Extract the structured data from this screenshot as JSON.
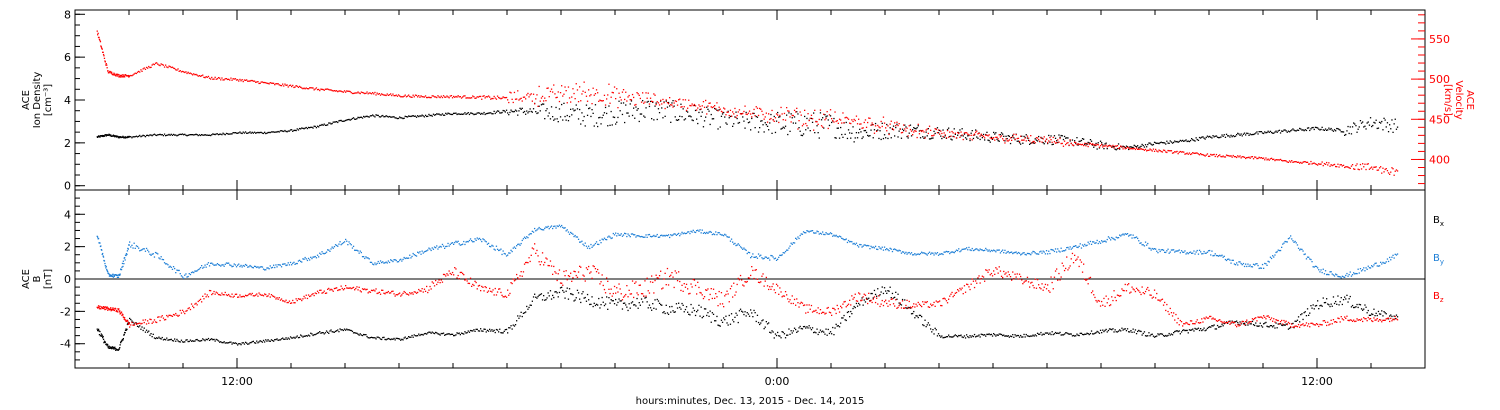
{
  "chart_data": [
    {
      "type": "scatter",
      "panel": "top",
      "ylabel": "ACE\nIon Density\n[cm⁻³]",
      "y2label": "ACE\nVelocity\n[km/s]",
      "ylim": [
        -0.2,
        8.2
      ],
      "y2lim": [
        362,
        586
      ],
      "yticks": [
        0,
        2,
        4,
        6,
        8
      ],
      "y2ticks": [
        400,
        450,
        500,
        550
      ],
      "colors": {
        "density": "#000000",
        "velocity": "#ff0000"
      },
      "series": [
        {
          "axis": "left",
          "color": "#000000",
          "x": [
            -5.2,
            -4.8,
            -4.4,
            -4.0,
            -3.0,
            -2.0,
            -1.0,
            0.0,
            1.0,
            2.0,
            3.0,
            4.0,
            5.0,
            6.0,
            7.0,
            8.0,
            9.0,
            10.0,
            11.0,
            12.0,
            13.0,
            14.0,
            15.0,
            16.0,
            17.0,
            18.0,
            19.0,
            20.0,
            21.0,
            22.0,
            23.0,
            24.0,
            25.0,
            26.0,
            27.0,
            28.0,
            29.0,
            30.0,
            31.0,
            32.0,
            33.0,
            34.0,
            35.0,
            36.0,
            37.0,
            38.0,
            39.0,
            40.0,
            41.0,
            42.0,
            43.0
          ],
          "y": [
            2.3,
            2.4,
            2.3,
            2.3,
            2.4,
            2.4,
            2.4,
            2.5,
            2.5,
            2.6,
            2.8,
            3.1,
            3.3,
            3.2,
            3.3,
            3.4,
            3.4,
            3.5,
            3.5,
            3.4,
            3.3,
            3.4,
            3.6,
            3.5,
            3.3,
            3.1,
            3.0,
            2.9,
            2.9,
            2.8,
            2.5,
            2.6,
            2.6,
            2.5,
            2.4,
            2.3,
            2.2,
            2.2,
            2.1,
            1.9,
            1.8,
            2.0,
            2.1,
            2.3,
            2.4,
            2.5,
            2.6,
            2.7,
            2.6,
            3.0,
            2.8
          ],
          "spread": [
            0.08,
            0.08,
            0.08,
            0.08,
            0.08,
            0.08,
            0.08,
            0.08,
            0.08,
            0.08,
            0.1,
            0.1,
            0.1,
            0.1,
            0.1,
            0.1,
            0.1,
            0.15,
            0.6,
            1.0,
            1.1,
            1.1,
            1.2,
            1.1,
            1.0,
            0.9,
            0.9,
            1.1,
            1.4,
            1.1,
            0.9,
            0.8,
            0.7,
            0.6,
            0.6,
            0.5,
            0.5,
            0.5,
            0.45,
            0.4,
            0.2,
            0.15,
            0.15,
            0.15,
            0.15,
            0.15,
            0.15,
            0.15,
            0.15,
            0.9,
            0.4
          ]
        },
        {
          "axis": "right",
          "color": "#ff0000",
          "x": [
            -5.2,
            -4.8,
            -4.4,
            -4.0,
            -3.0,
            -2.0,
            -1.0,
            0.0,
            1.0,
            2.0,
            3.0,
            4.0,
            5.0,
            6.0,
            7.0,
            8.0,
            9.0,
            10.0,
            11.0,
            12.0,
            13.0,
            14.0,
            15.0,
            16.0,
            17.0,
            18.0,
            19.0,
            20.0,
            21.0,
            22.0,
            23.0,
            24.0,
            25.0,
            26.0,
            27.0,
            28.0,
            29.0,
            30.0,
            31.0,
            32.0,
            33.0,
            34.0,
            35.0,
            36.0,
            37.0,
            38.0,
            39.0,
            40.0,
            41.0,
            42.0,
            43.0
          ],
          "y": [
            560,
            510,
            505,
            505,
            520,
            510,
            502,
            500,
            496,
            492,
            488,
            485,
            483,
            480,
            479,
            479,
            478,
            477,
            480,
            482,
            484,
            478,
            476,
            472,
            468,
            463,
            458,
            455,
            452,
            450,
            448,
            442,
            436,
            433,
            430,
            428,
            426,
            424,
            420,
            418,
            415,
            412,
            409,
            406,
            404,
            402,
            398,
            396,
            393,
            390,
            386
          ],
          "spread": [
            6,
            3,
            3,
            3,
            3,
            3,
            3,
            3,
            3,
            3,
            3,
            3,
            3,
            3,
            3,
            3,
            3,
            6,
            12,
            18,
            18,
            16,
            12,
            10,
            10,
            10,
            10,
            14,
            16,
            14,
            12,
            12,
            10,
            9,
            9,
            8,
            7,
            6,
            5,
            4,
            3,
            3,
            3,
            3,
            3,
            3,
            3,
            4,
            5,
            8,
            8
          ]
        }
      ]
    },
    {
      "type": "scatter",
      "panel": "bottom",
      "xlabel": "hours:minutes, Dec. 13, 2015 - Dec. 14, 2015",
      "ylabel": "ACE\nB\n[nT]",
      "ylim": [
        -5.5,
        5.5
      ],
      "yticks": [
        -4,
        -2,
        0,
        2,
        4
      ],
      "xlim": [
        -6.0,
        44.0
      ],
      "xticks_hours": [
        0,
        20,
        40
      ],
      "xtick_labels": [
        "12:00",
        "0:00",
        "12:00"
      ],
      "legend": [
        {
          "main": "B",
          "sub": "x",
          "color": "#000000"
        },
        {
          "main": "B",
          "sub": "y",
          "color": "#1e7fd6"
        },
        {
          "main": "B",
          "sub": "z",
          "color": "#ff0000"
        }
      ],
      "series": [
        {
          "name": "Bx",
          "color": "#000000",
          "x": [
            -5.2,
            -4.8,
            -4.4,
            -4.0,
            -3.0,
            -2.0,
            -1.0,
            0.0,
            1.0,
            2.0,
            3.0,
            4.0,
            5.0,
            6.0,
            7.0,
            8.0,
            9.0,
            10.0,
            11.0,
            12.0,
            13.0,
            14.0,
            15.0,
            16.0,
            17.0,
            18.0,
            19.0,
            20.0,
            21.0,
            22.0,
            23.0,
            24.0,
            25.0,
            26.0,
            27.0,
            28.0,
            29.0,
            30.0,
            31.0,
            32.0,
            33.0,
            34.0,
            35.0,
            36.0,
            37.0,
            38.0,
            39.0,
            40.0,
            41.0,
            42.0,
            43.0
          ],
          "y": [
            -3.0,
            -4.2,
            -4.3,
            -2.5,
            -3.6,
            -3.8,
            -3.7,
            -4.0,
            -3.8,
            -3.6,
            -3.3,
            -3.1,
            -3.6,
            -3.7,
            -3.3,
            -3.4,
            -3.1,
            -3.2,
            -1.2,
            -0.8,
            -1.2,
            -1.6,
            -1.4,
            -1.8,
            -1.9,
            -2.6,
            -2.0,
            -3.5,
            -3.0,
            -3.3,
            -1.5,
            -0.5,
            -2.0,
            -3.5,
            -3.5,
            -3.4,
            -3.5,
            -3.3,
            -3.4,
            -3.2,
            -3.1,
            -3.5,
            -3.2,
            -3.0,
            -2.6,
            -2.8,
            -2.9,
            -1.5,
            -1.2,
            -2.0,
            -2.4
          ],
          "spread": [
            0.4,
            0.2,
            0.2,
            0.3,
            0.15,
            0.15,
            0.15,
            0.15,
            0.15,
            0.15,
            0.2,
            0.2,
            0.15,
            0.15,
            0.15,
            0.15,
            0.2,
            0.3,
            0.6,
            0.7,
            0.8,
            0.8,
            0.8,
            0.8,
            0.8,
            0.8,
            0.8,
            0.5,
            0.5,
            0.5,
            0.6,
            0.5,
            0.8,
            0.2,
            0.2,
            0.2,
            0.2,
            0.2,
            0.2,
            0.2,
            0.3,
            0.2,
            0.3,
            0.3,
            0.3,
            0.3,
            0.4,
            0.6,
            0.7,
            0.6,
            0.3
          ]
        },
        {
          "name": "By",
          "color": "#1e7fd6",
          "x": [
            -5.2,
            -4.8,
            -4.4,
            -4.0,
            -3.0,
            -2.0,
            -1.0,
            0.0,
            1.0,
            2.0,
            3.0,
            4.0,
            5.0,
            6.0,
            7.0,
            8.0,
            9.0,
            10.0,
            11.0,
            12.0,
            13.0,
            14.0,
            15.0,
            16.0,
            17.0,
            18.0,
            19.0,
            20.0,
            21.0,
            22.0,
            23.0,
            24.0,
            25.0,
            26.0,
            27.0,
            28.0,
            29.0,
            30.0,
            31.0,
            32.0,
            33.0,
            34.0,
            35.0,
            36.0,
            37.0,
            38.0,
            39.0,
            40.0,
            41.0,
            42.0,
            43.0
          ],
          "y": [
            2.8,
            0.3,
            0.2,
            2.2,
            1.5,
            0.2,
            1.0,
            0.9,
            0.7,
            1.0,
            1.5,
            2.4,
            1.0,
            1.2,
            1.8,
            2.2,
            2.5,
            1.5,
            3.1,
            3.3,
            2.0,
            2.8,
            2.7,
            2.7,
            3.0,
            2.8,
            1.5,
            1.3,
            3.0,
            2.8,
            2.1,
            1.9,
            1.6,
            1.6,
            1.9,
            1.8,
            1.6,
            1.7,
            2.0,
            2.4,
            2.8,
            1.8,
            1.7,
            1.7,
            1.0,
            0.8,
            2.6,
            0.6,
            0.2,
            0.8,
            1.5
          ],
          "spread": [
            0.3,
            0.2,
            0.2,
            0.4,
            0.3,
            0.3,
            0.3,
            0.2,
            0.2,
            0.2,
            0.3,
            0.3,
            0.2,
            0.2,
            0.3,
            0.3,
            0.3,
            0.3,
            0.2,
            0.2,
            0.3,
            0.2,
            0.2,
            0.2,
            0.2,
            0.2,
            0.3,
            0.3,
            0.2,
            0.2,
            0.2,
            0.2,
            0.2,
            0.2,
            0.2,
            0.2,
            0.2,
            0.2,
            0.3,
            0.3,
            0.3,
            0.3,
            0.2,
            0.3,
            0.3,
            0.3,
            0.3,
            0.3,
            0.3,
            0.3,
            0.3
          ]
        },
        {
          "name": "Bz",
          "color": "#ff0000",
          "x": [
            -5.2,
            -4.8,
            -4.4,
            -4.0,
            -3.0,
            -2.0,
            -1.0,
            0.0,
            1.0,
            2.0,
            3.0,
            4.0,
            5.0,
            6.0,
            7.0,
            8.0,
            9.0,
            10.0,
            11.0,
            12.0,
            13.0,
            14.0,
            15.0,
            16.0,
            17.0,
            18.0,
            19.0,
            20.0,
            21.0,
            22.0,
            23.0,
            24.0,
            25.0,
            26.0,
            27.0,
            28.0,
            29.0,
            30.0,
            31.0,
            32.0,
            33.0,
            34.0,
            35.0,
            36.0,
            37.0,
            38.0,
            39.0,
            40.0,
            41.0,
            42.0,
            43.0
          ],
          "y": [
            -1.7,
            -1.8,
            -1.9,
            -2.8,
            -2.5,
            -2.0,
            -0.8,
            -1.0,
            -0.9,
            -1.4,
            -0.8,
            -0.5,
            -0.7,
            -0.9,
            -0.6,
            0.5,
            -0.6,
            -0.9,
            1.8,
            0.0,
            0.5,
            -0.8,
            -0.6,
            0.2,
            -0.5,
            -1.3,
            0.5,
            -0.6,
            -1.8,
            -2.0,
            -1.0,
            -1.4,
            -1.6,
            -1.5,
            -0.5,
            0.6,
            0.0,
            -0.5,
            1.5,
            -1.5,
            -0.5,
            -1.0,
            -2.8,
            -2.4,
            -2.8,
            -2.3,
            -2.8,
            -2.8,
            -2.4,
            -2.5,
            -2.4
          ],
          "spread": [
            0.2,
            0.2,
            0.2,
            0.3,
            0.3,
            0.4,
            0.3,
            0.2,
            0.2,
            0.2,
            0.3,
            0.3,
            0.3,
            0.3,
            0.3,
            0.8,
            0.4,
            0.6,
            1.0,
            1.0,
            1.2,
            1.2,
            1.2,
            1.2,
            1.2,
            0.8,
            1.0,
            0.6,
            0.5,
            0.6,
            0.6,
            0.8,
            0.4,
            0.4,
            0.6,
            0.8,
            0.5,
            0.8,
            1.2,
            0.8,
            0.8,
            0.7,
            0.3,
            0.3,
            0.3,
            0.3,
            0.3,
            0.3,
            0.4,
            0.3,
            0.3
          ]
        }
      ]
    }
  ]
}
